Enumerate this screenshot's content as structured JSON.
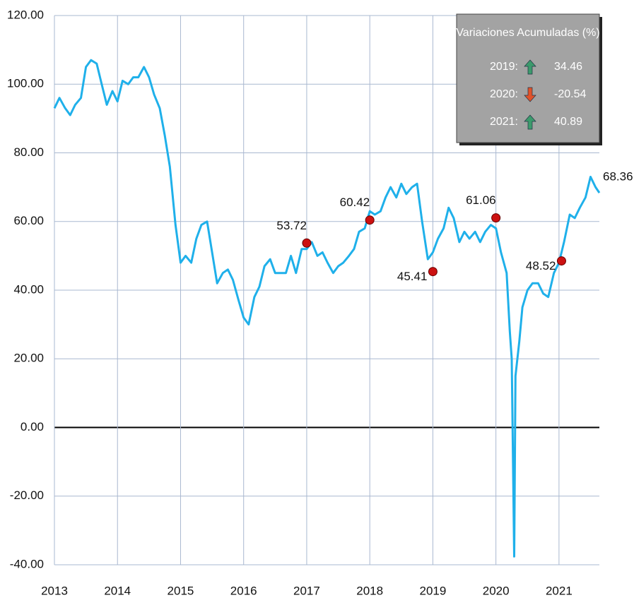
{
  "chart_data": {
    "type": "line",
    "xlim": [
      2013,
      2021.64
    ],
    "xticks": [
      2013,
      2014,
      2015,
      2016,
      2017,
      2018,
      2019,
      2020,
      2021
    ],
    "ylim": [
      -40,
      120
    ],
    "yticks": [
      {
        "value": -40,
        "label": "-40.00"
      },
      {
        "value": -20,
        "label": "-20.00"
      },
      {
        "value": 0,
        "label": "0.00"
      },
      {
        "value": 20,
        "label": "20.00"
      },
      {
        "value": 40,
        "label": "40.00"
      },
      {
        "value": 60,
        "label": "60.00"
      },
      {
        "value": 80,
        "label": "80.00"
      },
      {
        "value": 100,
        "label": "100.00"
      },
      {
        "value": 120,
        "label": "120.00"
      }
    ],
    "grid": true,
    "series": [
      {
        "color": "#1fb0ea",
        "x": [
          2013,
          2013.08,
          2013.17,
          2013.25,
          2013.33,
          2013.42,
          2013.5,
          2013.58,
          2013.67,
          2013.75,
          2013.83,
          2013.92,
          2014,
          2014.08,
          2014.17,
          2014.25,
          2014.33,
          2014.42,
          2014.5,
          2014.58,
          2014.67,
          2014.75,
          2014.83,
          2014.92,
          2015,
          2015.08,
          2015.17,
          2015.25,
          2015.33,
          2015.42,
          2015.5,
          2015.58,
          2015.67,
          2015.75,
          2015.83,
          2015.92,
          2016,
          2016.08,
          2016.17,
          2016.25,
          2016.33,
          2016.42,
          2016.5,
          2016.58,
          2016.67,
          2016.75,
          2016.83,
          2016.92,
          2017,
          2017.08,
          2017.17,
          2017.25,
          2017.33,
          2017.42,
          2017.5,
          2017.58,
          2017.67,
          2017.75,
          2017.83,
          2017.92,
          2018,
          2018.08,
          2018.17,
          2018.25,
          2018.33,
          2018.42,
          2018.5,
          2018.58,
          2018.67,
          2018.75,
          2018.83,
          2018.92,
          2019,
          2019.08,
          2019.17,
          2019.25,
          2019.33,
          2019.42,
          2019.5,
          2019.58,
          2019.67,
          2019.75,
          2019.83,
          2019.92,
          2020,
          2020.08,
          2020.17,
          2020.22,
          2020.25,
          2020.29,
          2020.31,
          2020.37,
          2020.42,
          2020.5,
          2020.58,
          2020.67,
          2020.75,
          2020.83,
          2020.92,
          2021,
          2021.08,
          2021.17,
          2021.25,
          2021.33,
          2021.42,
          2021.5,
          2021.58,
          2021.64
        ],
        "values": [
          93,
          96,
          93,
          91,
          94,
          96,
          105,
          107,
          106,
          100,
          94,
          98,
          95,
          101,
          100,
          102,
          102,
          105,
          102,
          97,
          93,
          85,
          76,
          59,
          48,
          50,
          48,
          55,
          59,
          60,
          51,
          42,
          45,
          46,
          43,
          37,
          32,
          30,
          38,
          41,
          47,
          49,
          45,
          45,
          45,
          50,
          45,
          52,
          52,
          54,
          50,
          51,
          48,
          45,
          47,
          48,
          50,
          52,
          57,
          58,
          63,
          62,
          63,
          67,
          70,
          67,
          71,
          68,
          70,
          71,
          60,
          49,
          51,
          55,
          58,
          64,
          61,
          54,
          57,
          55,
          57,
          54,
          57,
          59,
          58,
          51,
          45,
          28,
          20,
          -37.6,
          15,
          25,
          35,
          40,
          42,
          42,
          39,
          38,
          45,
          48,
          54,
          62,
          61,
          64,
          67,
          73,
          70,
          68.36
        ]
      }
    ],
    "markers": {
      "color": "#cc1111",
      "x": [
        2017,
        2018,
        2019,
        2020,
        2021.04
      ],
      "values": [
        53.72,
        60.42,
        45.41,
        61.06,
        48.52
      ]
    },
    "summary": {
      "title": "Variaciones Acumuladas (%)",
      "rows": [
        {
          "year": "2019:",
          "value": 34.46
        },
        {
          "year": "2020:",
          "value": -20.54
        },
        {
          "year": "2021:",
          "value": 40.89
        }
      ]
    }
  }
}
